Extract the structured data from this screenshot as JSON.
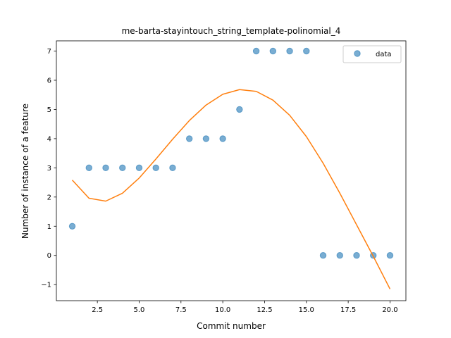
{
  "chart_data": {
    "type": "scatter",
    "title": "me-barta-stayintouch_string_template-polinomial_4",
    "xlabel": "Commit number",
    "ylabel": "Number of instance of a feature",
    "xlim": [
      0.05,
      20.95
    ],
    "ylim": [
      -1.55,
      7.35
    ],
    "x_ticks": [
      2.5,
      5.0,
      7.5,
      10.0,
      12.5,
      15.0,
      17.5,
      20.0
    ],
    "x_tick_labels": [
      "2.5",
      "5.0",
      "7.5",
      "10.0",
      "12.5",
      "15.0",
      "17.5",
      "20.0"
    ],
    "y_ticks": [
      -1,
      0,
      1,
      2,
      3,
      4,
      5,
      6,
      7
    ],
    "y_tick_labels": [
      "−1",
      "0",
      "1",
      "2",
      "3",
      "4",
      "5",
      "6",
      "7"
    ],
    "grid": false,
    "legend_position": "top-right",
    "series": [
      {
        "name": "data",
        "kind": "scatter",
        "color": "#1f77b4",
        "x": [
          1,
          2,
          3,
          4,
          5,
          6,
          7,
          8,
          9,
          10,
          11,
          12,
          13,
          14,
          15,
          16,
          17,
          18,
          19,
          20
        ],
        "y": [
          1,
          3,
          3,
          3,
          3,
          3,
          3,
          4,
          4,
          4,
          5,
          7,
          7,
          7,
          7,
          0,
          0,
          0,
          0,
          0
        ]
      },
      {
        "kind": "line",
        "color": "#ff7f0e",
        "x": [
          1,
          2,
          3,
          4,
          5,
          6,
          7,
          8,
          9,
          10,
          11,
          12,
          13,
          14,
          15,
          16,
          17,
          18,
          19,
          20
        ],
        "y": [
          2.58,
          1.96,
          1.86,
          2.13,
          2.65,
          3.3,
          3.98,
          4.62,
          5.15,
          5.52,
          5.68,
          5.62,
          5.32,
          4.8,
          4.07,
          3.16,
          2.13,
          1.05,
          -0.03,
          -1.15
        ]
      }
    ]
  }
}
